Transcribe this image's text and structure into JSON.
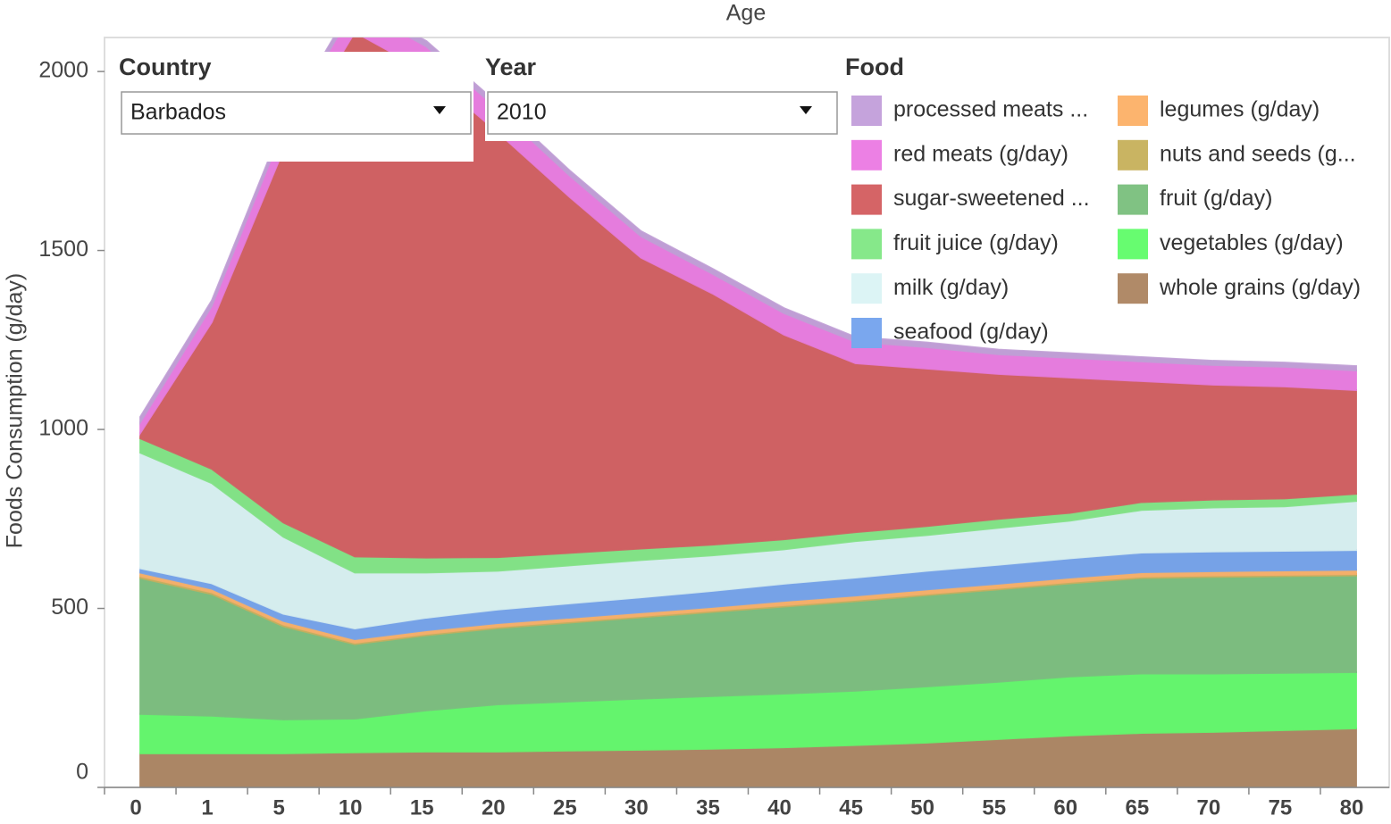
{
  "controls": {
    "country": {
      "label": "Country",
      "value": "Barbados"
    },
    "year": {
      "label": "Year",
      "value": "2010"
    }
  },
  "chart_data": {
    "type": "stacked_area",
    "x_label": "Age",
    "y_label": "Foods Consumption (g/day)",
    "legend_title": "Food",
    "categories": [
      "0",
      "1",
      "5",
      "10",
      "15",
      "20",
      "25",
      "30",
      "35",
      "40",
      "45",
      "50",
      "55",
      "60",
      "65",
      "70",
      "75",
      "80"
    ],
    "ylim": [
      0,
      2095
    ],
    "yticks": [
      0,
      500,
      1000,
      1500,
      2000
    ],
    "series": [
      {
        "name": "processed meats ...",
        "color": "#c5a3dc",
        "values": [
          15,
          15,
          15,
          15,
          15,
          15,
          14,
          14,
          14,
          14,
          13,
          13,
          13,
          13,
          12,
          12,
          12,
          12
        ]
      },
      {
        "name": "red meats (g/day)",
        "color": "#ec80e4",
        "values": [
          30,
          45,
          60,
          70,
          70,
          65,
          60,
          60,
          55,
          60,
          60,
          60,
          55,
          55,
          55,
          55,
          55,
          55
        ]
      },
      {
        "name": "sugar-sweetened ...",
        "color": "#d56466",
        "values": [
          15,
          410,
          1040,
          1465,
          1358,
          1187,
          995,
          813,
          702,
          572,
          472,
          440,
          405,
          378,
          338,
          321,
          313,
          290
        ]
      },
      {
        "name": "fruit juice (g/day)",
        "color": "#86e88a",
        "values": [
          40,
          40,
          40,
          45,
          42,
          38,
          35,
          32,
          30,
          28,
          25,
          25,
          25,
          22,
          22,
          22,
          22,
          20
        ]
      },
      {
        "name": "milk (g/day)",
        "color": "#dcf4f5",
        "values": [
          323,
          280,
          215,
          156,
          126,
          108,
          106,
          104,
          99,
          96,
          102,
          100,
          103,
          105,
          119,
          123,
          124,
          137
        ]
      },
      {
        "name": "seafood (g/day)",
        "color": "#7aa7ee",
        "values": [
          12,
          15,
          20,
          30,
          35,
          38,
          40,
          42,
          45,
          48,
          50,
          52,
          53,
          54,
          55,
          55,
          55,
          55
        ]
      },
      {
        "name": "legumes (g/day)",
        "color": "#fcb46e",
        "values": [
          10,
          10,
          10,
          10,
          10,
          10,
          10,
          10,
          10,
          12,
          12,
          12,
          12,
          12,
          12,
          12,
          12,
          12
        ]
      },
      {
        "name": "nuts and seeds (g...",
        "color": "#c9b462",
        "values": [
          5,
          5,
          5,
          4,
          4,
          4,
          4,
          4,
          4,
          4,
          4,
          4,
          4,
          4,
          4,
          4,
          4,
          4
        ]
      },
      {
        "name": "fruit (g/day)",
        "color": "#80c283",
        "values": [
          380,
          340,
          260,
          208,
          210,
          213,
          220,
          227,
          235,
          243,
          250,
          255,
          258,
          260,
          267,
          270,
          270,
          270
        ]
      },
      {
        "name": "vegetables (g/day)",
        "color": "#67fc70",
        "values": [
          110,
          105,
          95,
          94,
          115,
          132,
          137,
          143,
          147,
          150,
          152,
          157,
          160,
          165,
          166,
          163,
          160,
          157
        ]
      },
      {
        "name": "whole grains (g/day)",
        "color": "#b08a68",
        "values": [
          95,
          95,
          95,
          98,
          100,
          100,
          103,
          105,
          108,
          112,
          118,
          125,
          135,
          145,
          152,
          155,
          160,
          165
        ]
      }
    ]
  }
}
